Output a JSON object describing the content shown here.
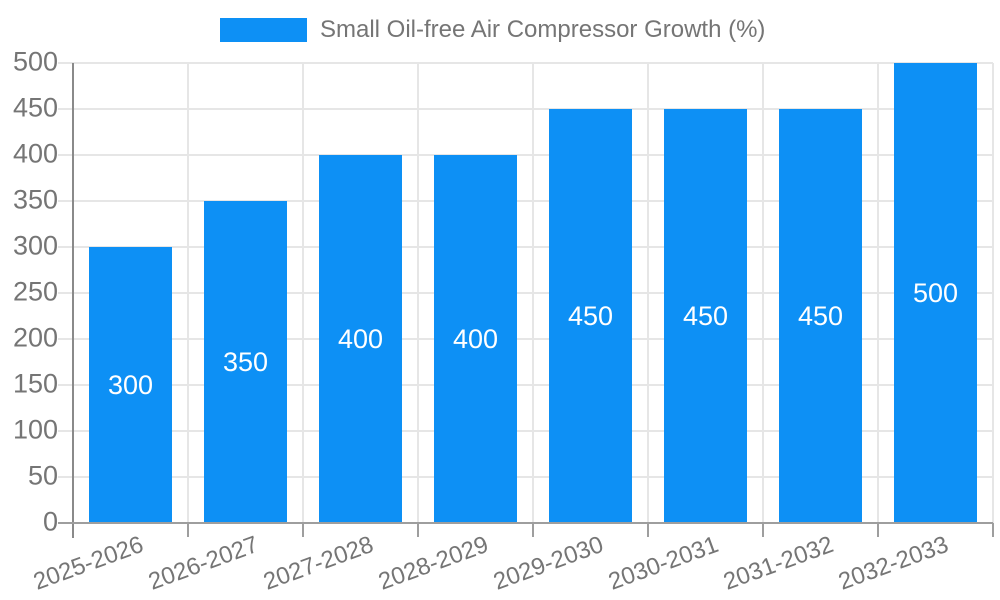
{
  "legend": {
    "label": "Small Oil-free Air Compressor Growth (%)"
  },
  "chart_data": {
    "type": "bar",
    "title": "Small Oil-free Air Compressor Growth (%)",
    "categories": [
      "2025-2026",
      "2026-2027",
      "2027-2028",
      "2028-2029",
      "2029-2030",
      "2030-2031",
      "2031-2032",
      "2032-2033"
    ],
    "values": [
      300,
      350,
      400,
      400,
      450,
      450,
      450,
      500
    ],
    "xlabel": "",
    "ylabel": "",
    "ylim": [
      0,
      500
    ],
    "ytick_step": 50,
    "grid": "both",
    "legend_position": "top",
    "bar_color": "#0d90f5",
    "value_label_color": "#ffffff",
    "axis_text_color": "#757575",
    "gridline_color": "#e6e6e6"
  }
}
